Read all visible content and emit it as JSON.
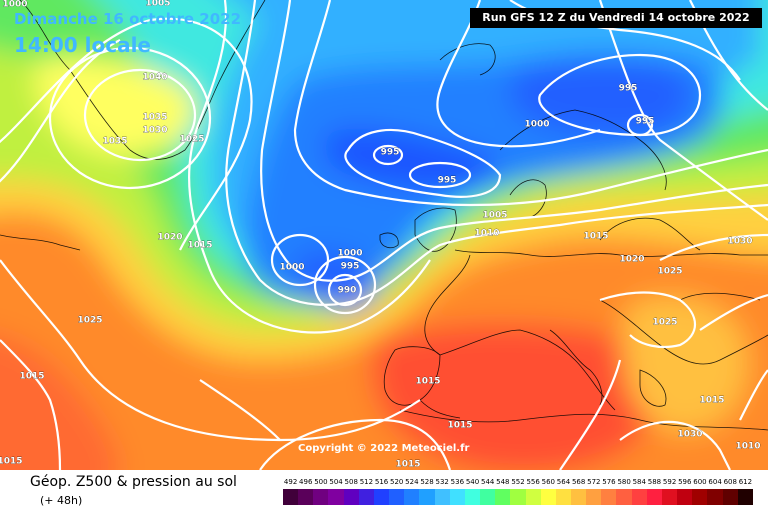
{
  "header": {
    "date": "Dimanche 16 octobre 2022",
    "time": "14:00 locale",
    "run": "Run GFS 12 Z du Vendredi 14 octobre 2022"
  },
  "copyright": "Copyright © 2022 Meteociel.fr",
  "legend": {
    "title": "Géop. Z500 & pression au sol",
    "subtitle": "(+ 48h)",
    "scale_values": [
      "492",
      "496",
      "500",
      "504",
      "508",
      "512",
      "516",
      "520",
      "524",
      "528",
      "532",
      "536",
      "540",
      "544",
      "548",
      "552",
      "556",
      "560",
      "564",
      "568",
      "572",
      "576",
      "580",
      "584",
      "588",
      "592",
      "596",
      "600",
      "604",
      "608",
      "612"
    ],
    "scale_colors": [
      "#40003a",
      "#5a005a",
      "#700080",
      "#8000a0",
      "#6000c0",
      "#4020e0",
      "#2040ff",
      "#2060ff",
      "#2080ff",
      "#20a0ff",
      "#40c0ff",
      "#40e0ff",
      "#40ffe0",
      "#40ffa0",
      "#60ff60",
      "#a0ff40",
      "#d0ff40",
      "#ffff40",
      "#ffe040",
      "#ffc040",
      "#ffa040",
      "#ff8040",
      "#ff6040",
      "#ff4040",
      "#ff2040",
      "#e01020",
      "#c00010",
      "#a00000",
      "#800000",
      "#600000",
      "#200000"
    ]
  },
  "pressure_labels": [
    {
      "text": "1040"
    },
    {
      "text": "1035"
    },
    {
      "text": "1030"
    },
    {
      "text": "1035"
    },
    {
      "text": "1025"
    },
    {
      "text": "1020"
    },
    {
      "text": "1015"
    },
    {
      "text": "995"
    },
    {
      "text": "995"
    },
    {
      "text": "1000"
    },
    {
      "text": "995"
    },
    {
      "text": "995"
    },
    {
      "text": "1005"
    },
    {
      "text": "1010"
    },
    {
      "text": "1000"
    },
    {
      "text": "1000"
    },
    {
      "text": "995"
    },
    {
      "text": "990"
    },
    {
      "text": "1015"
    },
    {
      "text": "1020"
    },
    {
      "text": "1025"
    },
    {
      "text": "1030"
    },
    {
      "text": "1025"
    },
    {
      "text": "1025"
    },
    {
      "text": "1015"
    },
    {
      "text": "1015"
    },
    {
      "text": "1015"
    },
    {
      "text": "1015"
    },
    {
      "text": "1030"
    },
    {
      "text": "1010"
    },
    {
      "text": "1015"
    },
    {
      "text": "1000"
    },
    {
      "text": "1005"
    },
    {
      "text": "1015"
    }
  ],
  "colors": {
    "accent": "#40b8ff",
    "isobar": "#ffffff",
    "coast": "#000000"
  }
}
